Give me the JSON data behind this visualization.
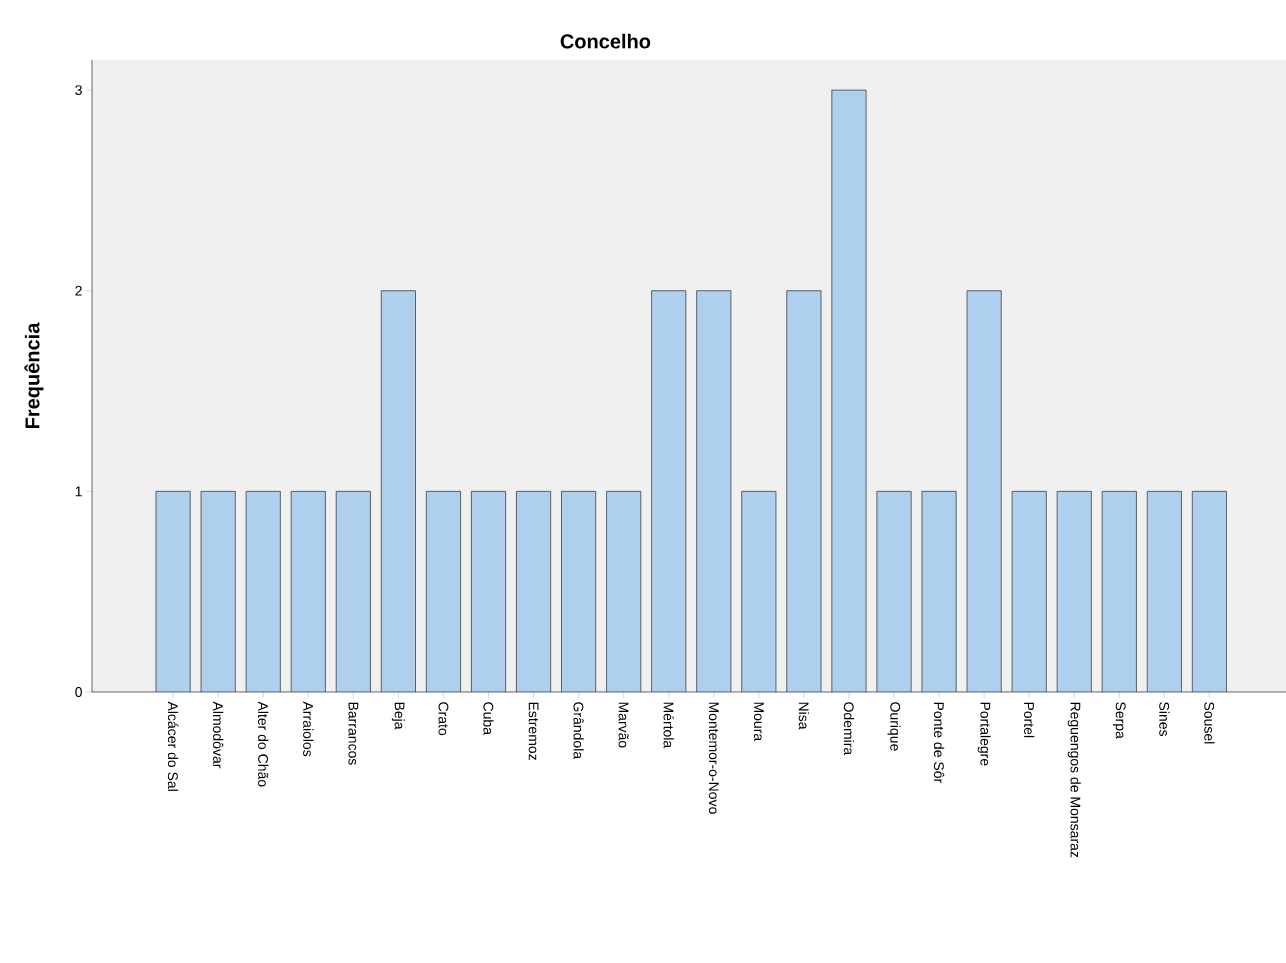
{
  "chart_data": {
    "type": "bar",
    "title": "Concelho",
    "ylabel": "Frequência",
    "categories": [
      "Alcácer do Sal",
      "Almodôvar",
      "Alter do Chão",
      "Arraiolos",
      "Barrancos",
      "Beja",
      "Crato",
      "Cuba",
      "Estremoz",
      "Grândola",
      "Marvão",
      "Mértola",
      "Montemor-o-Novo",
      "Moura",
      "Nisa",
      "Odemira",
      "Ourique",
      "Ponte de Sôr",
      "Portalegre",
      "Portel",
      "Reguengos de Monsaraz",
      "Serpa",
      "Sines",
      "Sousel"
    ],
    "values": [
      1,
      1,
      1,
      1,
      1,
      2,
      1,
      1,
      1,
      1,
      1,
      2,
      2,
      1,
      2,
      3,
      1,
      1,
      2,
      1,
      1,
      1,
      1,
      1
    ],
    "color": "#aecfee",
    "ylim": [
      0,
      3.15
    ],
    "yticks": [
      0,
      1,
      2,
      3
    ]
  }
}
